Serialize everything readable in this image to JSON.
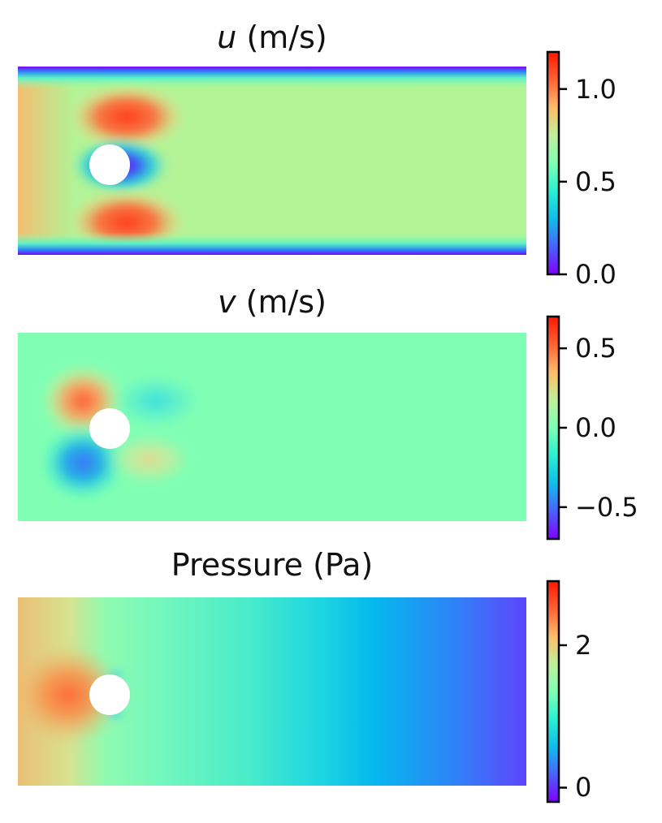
{
  "chart_data": [
    {
      "type": "heatmap",
      "title_var": "u",
      "title_rest": " (m/s)",
      "colormap": "rainbow",
      "vmin": 0.0,
      "vmax": 1.2,
      "colorbar_ticks": [
        0.0,
        0.5,
        1.0
      ],
      "colorbar_tick_labels": [
        "0.0",
        "0.5",
        "1.0"
      ],
      "background": "#b2f396",
      "obstacle": "circle"
    },
    {
      "type": "heatmap",
      "title_var": "v",
      "title_rest": " (m/s)",
      "colormap": "rainbow",
      "vmin": -0.7,
      "vmax": 0.7,
      "colorbar_ticks": [
        -0.5,
        0.0,
        0.5
      ],
      "colorbar_tick_labels": [
        "−0.5",
        "0.0",
        "0.5"
      ],
      "background": "#80ffb4",
      "obstacle": "circle"
    },
    {
      "type": "heatmap",
      "title_var": "",
      "title_rest": "Pressure (Pa)",
      "colormap": "rainbow",
      "vmin": -0.2,
      "vmax": 2.9,
      "colorbar_ticks": [
        0,
        2
      ],
      "colorbar_tick_labels": [
        "0",
        "2"
      ],
      "background": "#80ffb4",
      "obstacle": "circle"
    }
  ]
}
